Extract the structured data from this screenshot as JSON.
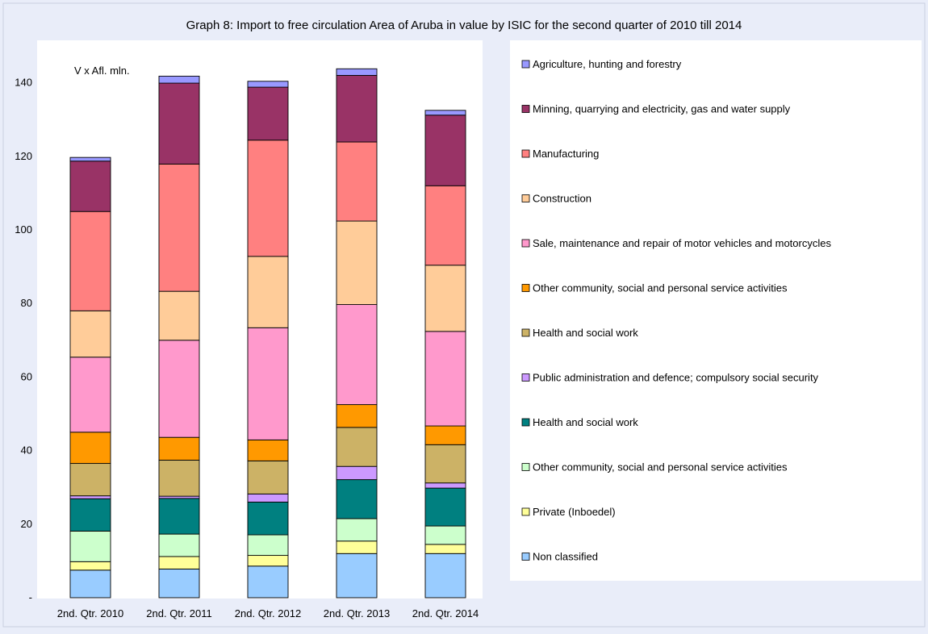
{
  "chart_data": {
    "type": "bar",
    "stacked": true,
    "title": "Graph 8: Import to free circulation Area of Aruba in value by ISIC for the second quarter of 2010 till 2014",
    "unit_label": "V x Afl. mln.",
    "categories": [
      "2nd. Qtr. 2010",
      "2nd. Qtr. 2011",
      "2nd. Qtr. 2012",
      "2nd. Qtr. 2013",
      "2nd. Qtr. 2014"
    ],
    "ylim": [
      0,
      145
    ],
    "yticks": [
      {
        "value": 0,
        "label": "-"
      },
      {
        "value": 20,
        "label": "20"
      },
      {
        "value": 40,
        "label": "40"
      },
      {
        "value": 60,
        "label": "60"
      },
      {
        "value": 80,
        "label": "80"
      },
      {
        "value": 100,
        "label": "100"
      },
      {
        "value": 120,
        "label": "120"
      },
      {
        "value": 140,
        "label": "140"
      }
    ],
    "grid": false,
    "legend_position": "right",
    "series": [
      {
        "name": "Non classified",
        "color": "#99ccff",
        "values": [
          7.5,
          7.8,
          8.6,
          12.0,
          12.0
        ]
      },
      {
        "name": "Private (Inboedel)",
        "color": "#ffff99",
        "values": [
          2.3,
          3.4,
          2.9,
          3.4,
          2.5
        ]
      },
      {
        "name": "Other community, social and personal service activities",
        "color": "#ccffcc",
        "values": [
          8.3,
          6.1,
          5.6,
          6.1,
          5.0
        ]
      },
      {
        "name": "Health and social work",
        "color": "#008080",
        "values": [
          8.8,
          9.7,
          8.9,
          10.6,
          10.3
        ]
      },
      {
        "name": "Public administration and defence; compulsory social security",
        "color": "#cc99ff",
        "values": [
          0.8,
          0.6,
          2.2,
          3.6,
          1.4
        ]
      },
      {
        "name": "Health and social work",
        "color": "#ccb266",
        "values": [
          8.8,
          9.8,
          9.0,
          10.6,
          10.4
        ]
      },
      {
        "name": "Other community, social and personal service activities",
        "color": "#ff9900",
        "values": [
          8.5,
          6.2,
          5.7,
          6.2,
          5.1
        ]
      },
      {
        "name": "Sale, maintenance and repair of motor vehicles and motorcycles",
        "color": "#ff99cc",
        "values": [
          20.4,
          26.4,
          30.5,
          27.2,
          25.7
        ]
      },
      {
        "name": "Construction",
        "color": "#ffcc99",
        "values": [
          12.6,
          13.3,
          19.4,
          22.7,
          18.0
        ]
      },
      {
        "name": "Manufacturing",
        "color": "#ff8080",
        "values": [
          27.0,
          34.6,
          31.6,
          21.5,
          21.6
        ]
      },
      {
        "name": "Minning, quarrying and electricity, gas and water supply",
        "color": "#993366",
        "values": [
          13.7,
          22.0,
          14.4,
          18.1,
          19.2
        ]
      },
      {
        "name": "Agriculture, hunting and forestry",
        "color": "#9999ff",
        "values": [
          1.0,
          1.9,
          1.6,
          1.8,
          1.3
        ]
      }
    ]
  }
}
